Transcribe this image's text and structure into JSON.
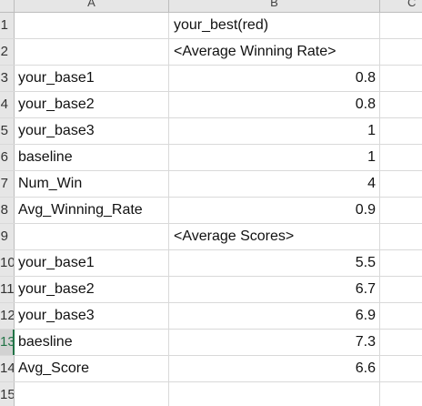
{
  "columns": {
    "a": "A",
    "b": "B",
    "c": "C"
  },
  "rows": [
    {
      "num": "1",
      "a": "",
      "b": "your_best(red)",
      "b_type": "text"
    },
    {
      "num": "2",
      "a": "",
      "b": "<Average Winning Rate>",
      "b_type": "text"
    },
    {
      "num": "3",
      "a": "your_base1",
      "b": "0.8",
      "b_type": "num"
    },
    {
      "num": "4",
      "a": "your_base2",
      "b": "0.8",
      "b_type": "num"
    },
    {
      "num": "5",
      "a": "your_base3",
      "b": "1",
      "b_type": "num"
    },
    {
      "num": "6",
      "a": "baseline",
      "b": "1",
      "b_type": "num"
    },
    {
      "num": "7",
      "a": "Num_Win",
      "b": "4",
      "b_type": "num"
    },
    {
      "num": "8",
      "a": "Avg_Winning_Rate",
      "b": "0.9",
      "b_type": "num"
    },
    {
      "num": "9",
      "a": "",
      "b": "<Average Scores>",
      "b_type": "text"
    },
    {
      "num": "10",
      "a": "your_base1",
      "b": "5.5",
      "b_type": "num"
    },
    {
      "num": "11",
      "a": "your_base2",
      "b": "6.7",
      "b_type": "num"
    },
    {
      "num": "12",
      "a": "your_base3",
      "b": "6.9",
      "b_type": "num"
    },
    {
      "num": "13",
      "a": "baesline",
      "b": "7.3",
      "b_type": "num",
      "selected": true
    },
    {
      "num": "14",
      "a": "Avg_Score",
      "b": "6.6",
      "b_type": "num"
    },
    {
      "num": "15",
      "a": "",
      "b": "",
      "b_type": "text"
    }
  ],
  "colors": {
    "selection_accent": "#217346",
    "header_bg": "#e6e6e6",
    "gridline": "#d9d9d9"
  }
}
